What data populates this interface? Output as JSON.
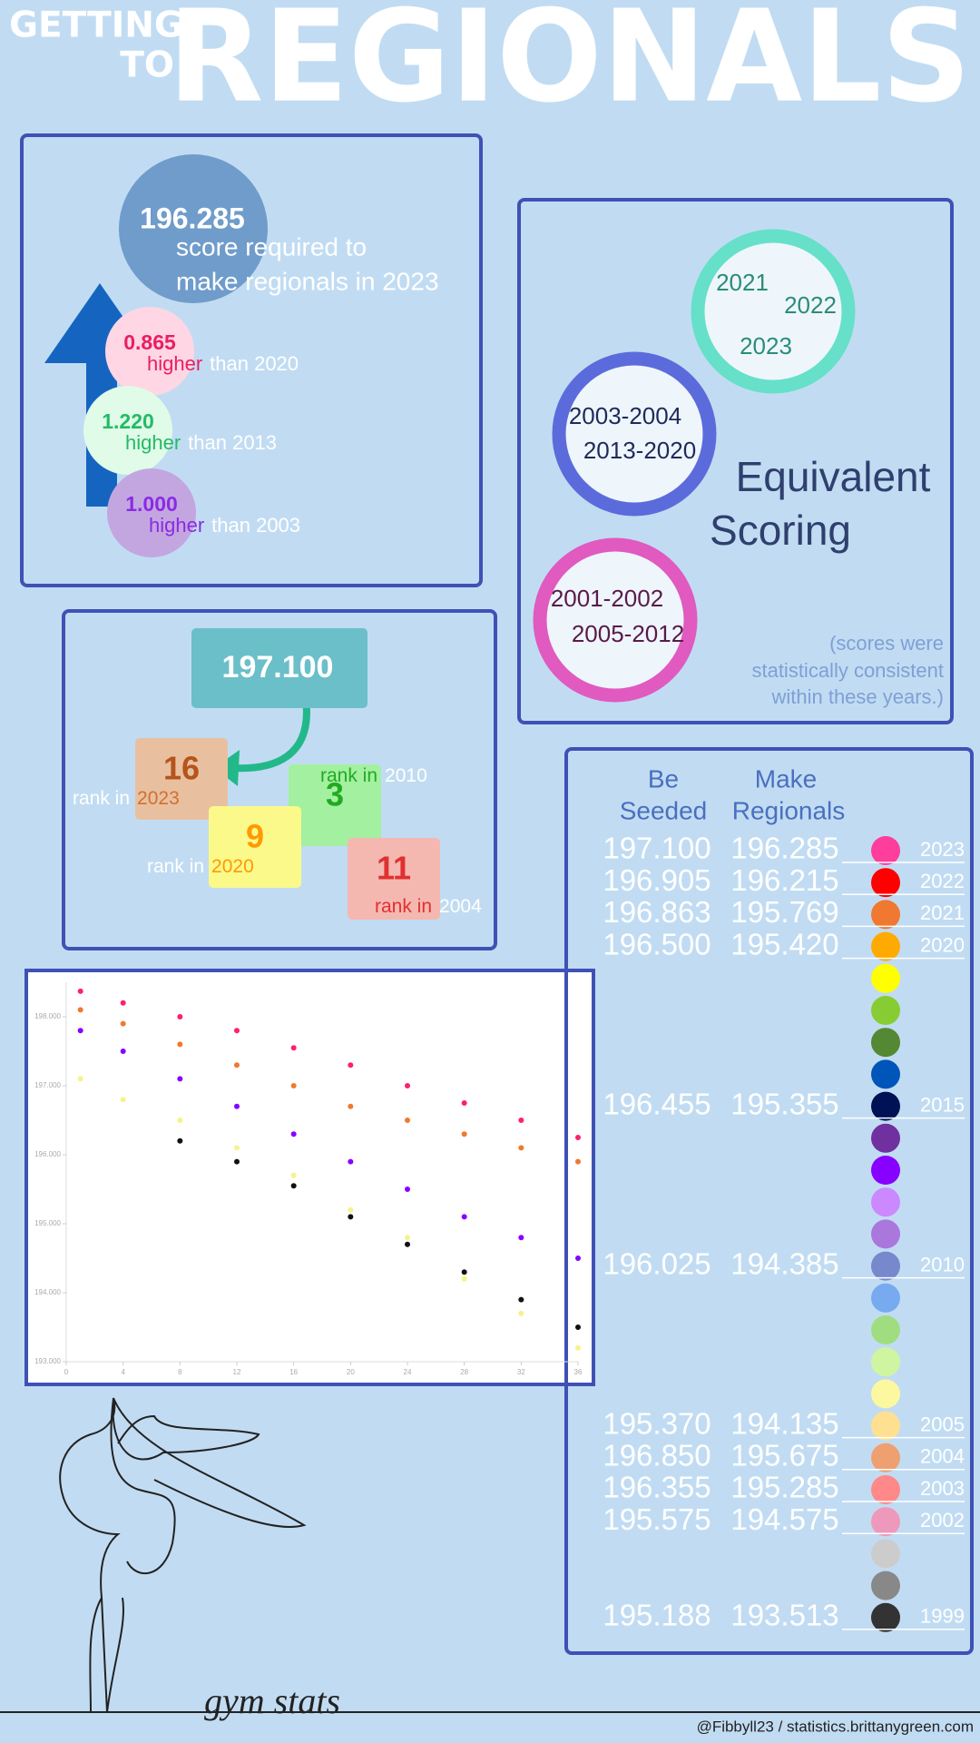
{
  "header": {
    "line1": "GETTING",
    "line2": "TO",
    "title": "REGIONALS"
  },
  "required": {
    "score": "196.285",
    "caption1": "score required to",
    "caption2": "make regionals in 2023",
    "comparisons": [
      {
        "value": "0.865",
        "word": "higher",
        "rest": "than 2020"
      },
      {
        "value": "1.220",
        "word": "higher",
        "rest": "than 2013"
      },
      {
        "value": "1.000",
        "word": "higher",
        "rest": "than 2003"
      }
    ]
  },
  "equivalent": {
    "groups": [
      {
        "years": [
          "2021",
          "2022",
          "2023"
        ]
      },
      {
        "years": [
          "2003-2004",
          "2013-2020"
        ]
      },
      {
        "years": [
          "2001-2002",
          "2005-2012"
        ]
      }
    ],
    "title1": "Equivalent",
    "title2": "Scoring",
    "note": [
      "(scores were",
      "statistically consistent",
      "within these years.)"
    ]
  },
  "ranks": {
    "score": "197.100",
    "items": [
      {
        "rank": "16",
        "label": "rank in",
        "year": "2023"
      },
      {
        "rank": "3",
        "label": "rank in",
        "year": "2010"
      },
      {
        "rank": "9",
        "label": "rank in",
        "year": "2020"
      },
      {
        "rank": "11",
        "label": "rank in",
        "year": "2004"
      }
    ]
  },
  "chart_data": {
    "type": "scatter",
    "x": [
      1,
      4,
      8,
      12,
      16,
      20,
      24,
      28,
      32,
      36
    ],
    "series": [
      {
        "color": "#ff1f6e",
        "values": [
          198.37,
          198.2,
          198.0,
          197.8,
          197.55,
          197.3,
          197.0,
          196.75,
          196.5,
          196.25
        ]
      },
      {
        "color": "#f07830",
        "values": [
          198.1,
          197.9,
          197.6,
          197.3,
          197.0,
          196.7,
          196.5,
          196.3,
          196.1,
          195.9
        ]
      },
      {
        "color": "#8800ff",
        "values": [
          197.8,
          197.5,
          197.1,
          196.7,
          196.3,
          195.9,
          195.5,
          195.1,
          194.8,
          194.5
        ]
      },
      {
        "color": "#f5f38a",
        "values": [
          197.1,
          196.8,
          196.5,
          196.1,
          195.7,
          195.2,
          194.8,
          194.2,
          193.7,
          193.2
        ]
      },
      {
        "color": "#111111",
        "values": [
          null,
          null,
          196.2,
          195.9,
          195.55,
          195.1,
          194.7,
          194.3,
          193.9,
          193.5
        ]
      }
    ],
    "xlim": [
      0,
      36
    ],
    "ylim": [
      193,
      198.5
    ],
    "xticks": [
      0,
      4,
      8,
      12,
      16,
      20,
      24,
      28,
      32,
      36
    ],
    "yticks": [
      {
        "value": 193,
        "label": "193.000"
      },
      {
        "value": 194,
        "label": "194.000"
      },
      {
        "value": 195,
        "label": "195.000"
      },
      {
        "value": 196,
        "label": "196.000"
      },
      {
        "value": 197,
        "label": "197.000"
      },
      {
        "value": 198,
        "label": "198.000"
      }
    ]
  },
  "table": {
    "headers": [
      [
        "Be",
        "Seeded"
      ],
      [
        "Make",
        "Regionals"
      ]
    ],
    "rows": [
      {
        "seeded": "197.100",
        "regionals": "196.285",
        "year": "2023",
        "color": "#ff3d9a"
      },
      {
        "seeded": "196.905",
        "regionals": "196.215",
        "year": "2022",
        "color": "#ff0000"
      },
      {
        "seeded": "196.863",
        "regionals": "195.769",
        "year": "2021",
        "color": "#f07830"
      },
      {
        "seeded": "196.500",
        "regionals": "195.420",
        "year": "2020",
        "color": "#ffaa00"
      },
      {
        "color": "#ffff00"
      },
      {
        "color": "#88cc33"
      },
      {
        "color": "#558833"
      },
      {
        "color": "#0055bb"
      },
      {
        "seeded": "196.455",
        "regionals": "195.355",
        "year": "2015",
        "color": "#001155"
      },
      {
        "color": "#7030a0"
      },
      {
        "color": "#8800ff"
      },
      {
        "color": "#cc88ff"
      },
      {
        "color": "#aa77dd"
      },
      {
        "seeded": "196.025",
        "regionals": "194.385",
        "year": "2010",
        "color": "#7788cc"
      },
      {
        "color": "#77aaee"
      },
      {
        "color": "#a0dd80"
      },
      {
        "color": "#d0f5a0"
      },
      {
        "color": "#fcf8a0"
      },
      {
        "seeded": "195.370",
        "regionals": "194.135",
        "year": "2005",
        "color": "#ffe090"
      },
      {
        "seeded": "196.850",
        "regionals": "195.675",
        "year": "2004",
        "color": "#eea070"
      },
      {
        "seeded": "196.355",
        "regionals": "195.285",
        "year": "2003",
        "color": "#ff8888"
      },
      {
        "seeded": "195.575",
        "regionals": "194.575",
        "year": "2002",
        "color": "#ee99bb"
      },
      {
        "color": "#cccccc"
      },
      {
        "color": "#888888"
      },
      {
        "seeded": "195.188",
        "regionals": "193.513",
        "year": "1999",
        "color": "#333333"
      }
    ]
  },
  "footer": {
    "brand": "gym stats",
    "credit": "@Fibbyll23 / statistics.brittanygreen.com"
  }
}
